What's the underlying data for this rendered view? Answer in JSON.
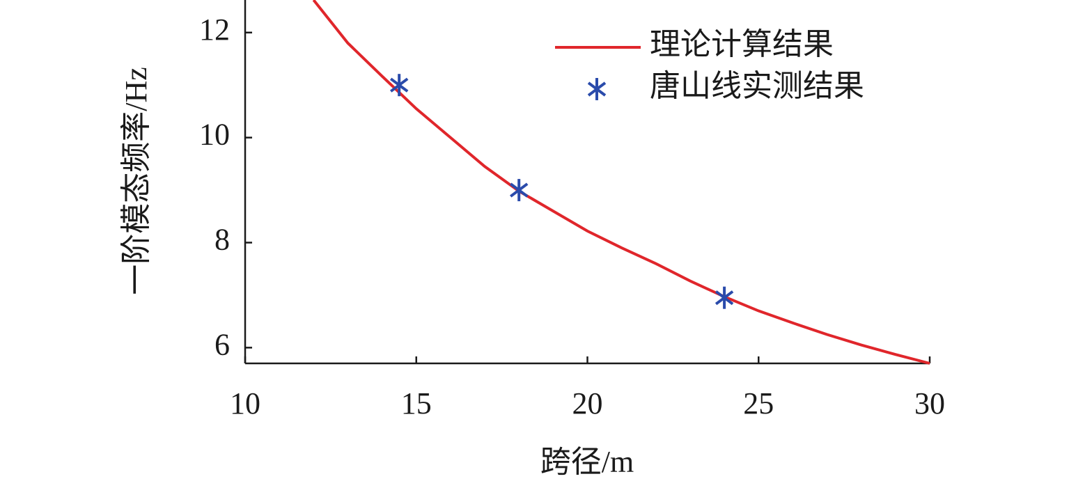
{
  "chart_data": {
    "type": "line",
    "x_label": "跨径/m",
    "y_label": "一阶模态频率/Hz",
    "xlim": [
      10,
      30
    ],
    "xticks": [
      10,
      15,
      20,
      25,
      30
    ],
    "ylim": [
      5.7,
      12.62
    ],
    "yticks": [
      6,
      8,
      10,
      12
    ],
    "legend": "upper right",
    "series": [
      {
        "name": "理论计算结果",
        "color": "#e0262b",
        "style": "line",
        "x": [
          12,
          13,
          14,
          15,
          16,
          17,
          18,
          19,
          20,
          21,
          22,
          23,
          24,
          25,
          26,
          27,
          28,
          29,
          30
        ],
        "values": [
          12.62,
          11.8,
          11.17,
          10.55,
          10.0,
          9.45,
          8.98,
          8.6,
          8.22,
          7.9,
          7.6,
          7.27,
          6.97,
          6.7,
          6.47,
          6.25,
          6.05,
          5.87,
          5.7
        ]
      },
      {
        "name": "唐山线实测结果",
        "color": "#2a4bab",
        "style": "marker",
        "x": [
          14.5,
          18,
          24
        ],
        "values": [
          11.0,
          9.0,
          6.95
        ]
      }
    ]
  }
}
